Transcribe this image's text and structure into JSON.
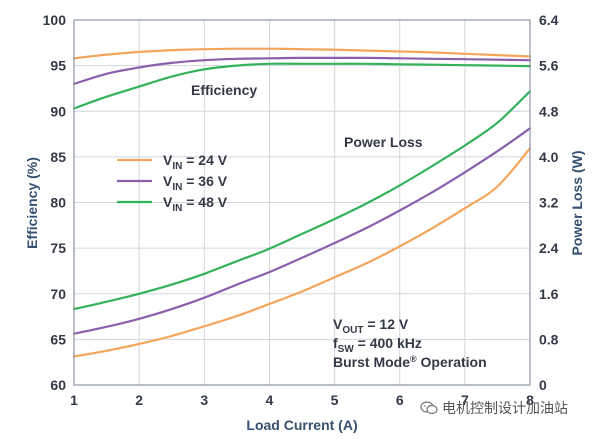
{
  "chart_data": {
    "type": "line",
    "xlabel": "Load Current (A)",
    "ylabel_left": "Efficiency (%)",
    "ylabel_right": "Power Loss (W)",
    "xlim": [
      1,
      8
    ],
    "ylim_left": [
      60,
      100
    ],
    "ylim_right": [
      0,
      6.4
    ],
    "x_ticks": [
      "1",
      "2",
      "3",
      "4",
      "5",
      "6",
      "7",
      "8"
    ],
    "y_left_ticks": [
      "60",
      "65",
      "70",
      "75",
      "80",
      "85",
      "90",
      "95",
      "100"
    ],
    "y_right_ticks": [
      "0",
      "0.8",
      "1.6",
      "2.4",
      "3.2",
      "4.0",
      "4.8",
      "5.6",
      "6.4"
    ],
    "grid": true,
    "colors": {
      "vin24": "#f4a55a",
      "vin36": "#8a5fab",
      "vin48": "#33b25a"
    },
    "efficiency_label": "Efficiency",
    "power_loss_label": "Power Loss",
    "legend": {
      "placement": "left-center",
      "entries": [
        {
          "prefix": "V",
          "sub": "IN",
          "suffix": " = 24 V",
          "color": "#f4a55a"
        },
        {
          "prefix": "V",
          "sub": "IN",
          "suffix": " = 36 V",
          "color": "#8a5fab"
        },
        {
          "prefix": "V",
          "sub": "IN",
          "suffix": " = 48 V",
          "color": "#33b25a"
        }
      ]
    },
    "conditions": [
      {
        "prefix": "V",
        "sub": "OUT",
        "suffix": " = 12 V"
      },
      {
        "prefix": "f",
        "sub": "SW",
        "suffix": " = 400 kHz"
      },
      {
        "prefix": "Burst Mode",
        "sup": "®",
        "suffix": " Operation"
      }
    ],
    "efficiency_series": [
      {
        "name": "VIN = 24 V",
        "color": "#f4a55a",
        "x": [
          1,
          1.5,
          2,
          2.5,
          3,
          3.5,
          4,
          4.5,
          5,
          5.5,
          6,
          6.5,
          7,
          7.5,
          8
        ],
        "y": [
          95.8,
          96.2,
          96.5,
          96.7,
          96.8,
          96.85,
          96.85,
          96.8,
          96.75,
          96.65,
          96.55,
          96.45,
          96.3,
          96.15,
          96.0
        ]
      },
      {
        "name": "VIN = 36 V",
        "color": "#8a5fab",
        "x": [
          1,
          1.5,
          2,
          2.5,
          3,
          3.5,
          4,
          4.5,
          5,
          5.5,
          6,
          6.5,
          7,
          7.5,
          8
        ],
        "y": [
          93.0,
          94.1,
          94.8,
          95.3,
          95.6,
          95.75,
          95.8,
          95.85,
          95.85,
          95.85,
          95.8,
          95.75,
          95.7,
          95.65,
          95.6
        ]
      },
      {
        "name": "VIN = 48 V",
        "color": "#33b25a",
        "x": [
          1,
          1.5,
          2,
          2.5,
          3,
          3.5,
          4,
          4.5,
          5,
          5.5,
          6,
          6.5,
          7,
          7.5,
          8
        ],
        "y": [
          90.3,
          91.6,
          92.7,
          93.8,
          94.6,
          95.0,
          95.2,
          95.2,
          95.2,
          95.2,
          95.15,
          95.1,
          95.05,
          95.0,
          94.95
        ]
      }
    ],
    "power_loss_series": [
      {
        "name": "VIN = 24 V",
        "color": "#f4a55a",
        "x": [
          1,
          1.5,
          2,
          2.5,
          3,
          3.5,
          4,
          4.5,
          5,
          5.5,
          6,
          6.5,
          7,
          7.5,
          8
        ],
        "y": [
          0.5,
          0.6,
          0.72,
          0.86,
          1.03,
          1.21,
          1.42,
          1.64,
          1.89,
          2.14,
          2.43,
          2.75,
          3.1,
          3.48,
          4.15
        ]
      },
      {
        "name": "VIN = 36 V",
        "color": "#8a5fab",
        "x": [
          1,
          1.5,
          2,
          2.5,
          3,
          3.5,
          4,
          4.5,
          5,
          5.5,
          6,
          6.5,
          7,
          7.5,
          8
        ],
        "y": [
          0.9,
          1.02,
          1.16,
          1.33,
          1.53,
          1.76,
          1.98,
          2.23,
          2.49,
          2.76,
          3.06,
          3.38,
          3.73,
          4.1,
          4.5
        ]
      },
      {
        "name": "VIN = 48 V",
        "color": "#33b25a",
        "x": [
          1,
          1.5,
          2,
          2.5,
          3,
          3.5,
          4,
          4.5,
          5,
          5.5,
          6,
          6.5,
          7,
          7.5,
          8
        ],
        "y": [
          1.33,
          1.46,
          1.6,
          1.76,
          1.95,
          2.17,
          2.39,
          2.65,
          2.91,
          3.19,
          3.5,
          3.84,
          4.2,
          4.6,
          5.15
        ]
      }
    ]
  },
  "watermark": {
    "text": "电机控制设计加油站",
    "icon": "wechat-icon"
  }
}
